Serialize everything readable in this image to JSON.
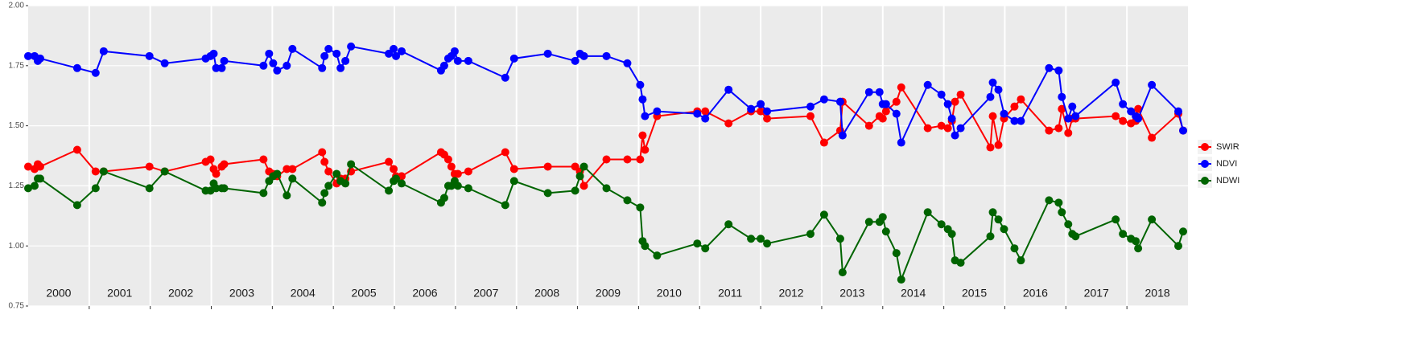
{
  "chart_data": {
    "type": "line",
    "x": [
      2000.0,
      2000.105,
      2000.158,
      2000.197,
      2000.803,
      2001.105,
      2001.237,
      2001.987,
      2002.237,
      2002.908,
      2002.987,
      2003.039,
      2003.079,
      2003.171,
      2003.211,
      2003.855,
      2003.947,
      2004.013,
      2004.079,
      2004.237,
      2004.329,
      2004.816,
      2004.855,
      2004.921,
      2005.053,
      2005.118,
      2005.197,
      2005.289,
      2005.908,
      2005.987,
      2006.026,
      2006.118,
      2006.763,
      2006.816,
      2006.882,
      2006.934,
      2006.987,
      2007.039,
      2007.211,
      2007.816,
      2007.961,
      2008.513,
      2008.961,
      2009.039,
      2009.105,
      2009.474,
      2009.816,
      2010.026,
      2010.066,
      2010.105,
      2010.303,
      2010.961,
      2011.092,
      2011.474,
      2011.842,
      2012.0,
      2012.105,
      2012.816,
      2013.039,
      2013.303,
      2013.342,
      2013.776,
      2013.947,
      2014.0,
      2014.053,
      2014.224,
      2014.303,
      2014.737,
      2014.961,
      2015.066,
      2015.132,
      2015.184,
      2015.276,
      2015.763,
      2015.803,
      2015.895,
      2015.987,
      2016.158,
      2016.263,
      2016.724,
      2016.882,
      2016.934,
      2017.039,
      2017.105,
      2017.158,
      2017.816,
      2017.934,
      2018.066,
      2018.145,
      2018.184,
      2018.408,
      2018.842,
      2018.921
    ],
    "series": [
      {
        "name": "SWIR",
        "color": "#ff0000",
        "values": [
          1.33,
          1.32,
          1.34,
          1.33,
          1.4,
          1.31,
          1.31,
          1.33,
          1.31,
          1.35,
          1.36,
          1.32,
          1.3,
          1.33,
          1.34,
          1.36,
          1.31,
          1.3,
          1.29,
          1.32,
          1.32,
          1.39,
          1.35,
          1.31,
          1.26,
          1.28,
          1.28,
          1.31,
          1.35,
          1.32,
          1.29,
          1.29,
          1.39,
          1.38,
          1.36,
          1.33,
          1.3,
          1.3,
          1.31,
          1.39,
          1.32,
          1.33,
          1.33,
          1.31,
          1.25,
          1.36,
          1.36,
          1.36,
          1.46,
          1.4,
          1.54,
          1.56,
          1.56,
          1.51,
          1.56,
          1.56,
          1.53,
          1.54,
          1.43,
          1.48,
          1.6,
          1.5,
          1.54,
          1.53,
          1.56,
          1.6,
          1.66,
          1.49,
          1.5,
          1.49,
          1.52,
          1.6,
          1.63,
          1.41,
          1.54,
          1.42,
          1.53,
          1.58,
          1.61,
          1.48,
          1.49,
          1.57,
          1.47,
          1.53,
          1.53,
          1.54,
          1.52,
          1.51,
          1.52,
          1.57,
          1.45,
          1.55,
          1.48
        ]
      },
      {
        "name": "NDVI",
        "color": "#0000ff",
        "values": [
          1.79,
          1.79,
          1.77,
          1.78,
          1.74,
          1.72,
          1.81,
          1.79,
          1.76,
          1.78,
          1.79,
          1.8,
          1.74,
          1.74,
          1.77,
          1.75,
          1.8,
          1.76,
          1.73,
          1.75,
          1.82,
          1.74,
          1.79,
          1.82,
          1.8,
          1.74,
          1.77,
          1.83,
          1.8,
          1.82,
          1.79,
          1.81,
          1.73,
          1.75,
          1.78,
          1.79,
          1.81,
          1.77,
          1.77,
          1.7,
          1.78,
          1.8,
          1.77,
          1.8,
          1.79,
          1.79,
          1.76,
          1.67,
          1.61,
          1.54,
          1.56,
          1.55,
          1.53,
          1.65,
          1.57,
          1.59,
          1.56,
          1.58,
          1.61,
          1.6,
          1.46,
          1.64,
          1.64,
          1.59,
          1.59,
          1.55,
          1.43,
          1.67,
          1.63,
          1.59,
          1.53,
          1.46,
          1.49,
          1.62,
          1.68,
          1.65,
          1.55,
          1.52,
          1.52,
          1.74,
          1.73,
          1.62,
          1.53,
          1.58,
          1.54,
          1.68,
          1.59,
          1.56,
          1.54,
          1.53,
          1.67,
          1.56,
          1.48
        ]
      },
      {
        "name": "NDWI",
        "color": "#006400",
        "values": [
          1.24,
          1.25,
          1.28,
          1.28,
          1.17,
          1.24,
          1.31,
          1.24,
          1.31,
          1.23,
          1.23,
          1.26,
          1.24,
          1.24,
          1.24,
          1.22,
          1.27,
          1.29,
          1.3,
          1.21,
          1.28,
          1.18,
          1.22,
          1.25,
          1.3,
          1.27,
          1.26,
          1.34,
          1.23,
          1.27,
          1.28,
          1.26,
          1.18,
          1.2,
          1.25,
          1.25,
          1.27,
          1.25,
          1.24,
          1.17,
          1.27,
          1.22,
          1.23,
          1.29,
          1.33,
          1.24,
          1.19,
          1.16,
          1.02,
          1.0,
          0.96,
          1.01,
          0.99,
          1.09,
          1.03,
          1.03,
          1.01,
          1.05,
          1.13,
          1.03,
          0.89,
          1.1,
          1.1,
          1.12,
          1.06,
          0.97,
          0.86,
          1.14,
          1.09,
          1.07,
          1.05,
          0.94,
          0.93,
          1.04,
          1.14,
          1.11,
          1.07,
          0.99,
          0.94,
          1.19,
          1.18,
          1.14,
          1.09,
          1.05,
          1.04,
          1.11,
          1.05,
          1.03,
          1.02,
          0.99,
          1.11,
          1.0,
          1.06
        ]
      }
    ],
    "xlim": [
      2000,
      2019
    ],
    "xticks": [
      2001,
      2002,
      2003,
      2004,
      2005,
      2006,
      2007,
      2008,
      2009,
      2010,
      2011,
      2012,
      2013,
      2014,
      2015,
      2016,
      2017,
      2018
    ],
    "panel_labels": [
      "2000",
      "2001",
      "2002",
      "2003",
      "2004",
      "2005",
      "2006",
      "2007",
      "2008",
      "2009",
      "2010",
      "2011",
      "2012",
      "2013",
      "2014",
      "2015",
      "2016",
      "2017",
      "2018"
    ],
    "ylim": [
      0.75,
      2.0
    ],
    "yticks": [
      {
        "value": 0.75,
        "label": "0.75"
      },
      {
        "value": 1.0,
        "label": "1.00"
      },
      {
        "value": 1.25,
        "label": "1.25"
      },
      {
        "value": 1.5,
        "label": "1.50"
      },
      {
        "value": 1.75,
        "label": "1.75"
      },
      {
        "value": 2.0,
        "label": "2.00"
      }
    ],
    "grid": true,
    "legend": "right"
  }
}
